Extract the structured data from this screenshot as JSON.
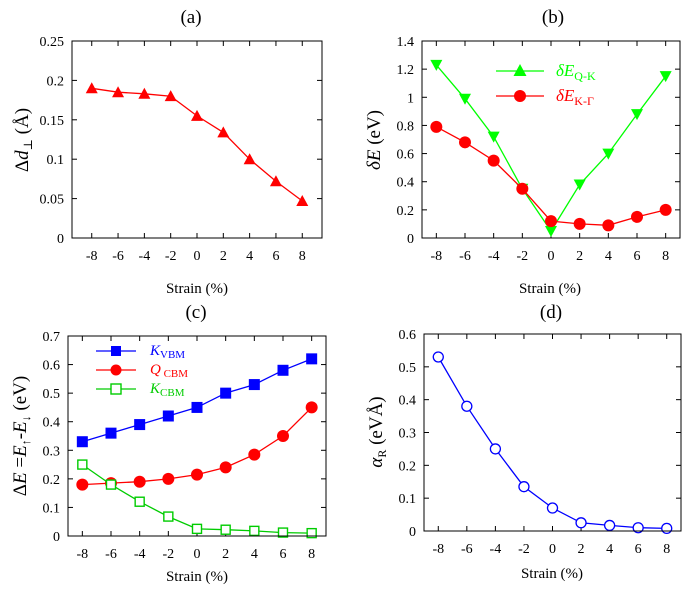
{
  "chart_data": [
    {
      "panel": "(a)",
      "type": "line",
      "title": "(a)",
      "xlabel": "Strain (%)",
      "ylabel": "Δd⊥ (Å)",
      "ylabel_parts": [
        "Δ",
        "d",
        "⊥",
        " (Å)"
      ],
      "x": [
        -8,
        -6,
        -4,
        -2,
        0,
        2,
        4,
        6,
        8
      ],
      "xlim": [
        -9.5,
        9.5
      ],
      "ylim": [
        0,
        0.25
      ],
      "xticks": [
        "-8",
        "-6",
        "-4",
        "-2",
        "0",
        "2",
        "4",
        "6",
        "8"
      ],
      "yticks": [
        "0",
        "0.05",
        "0.1",
        "0.15",
        "0.2",
        "0.25"
      ],
      "series": [
        {
          "name": "Δd⊥",
          "color": "#ff0000",
          "marker": "triangle-up",
          "filled": true,
          "values": [
            0.19,
            0.185,
            0.183,
            0.18,
            0.155,
            0.134,
            0.1,
            0.072,
            0.047
          ]
        }
      ]
    },
    {
      "panel": "(b)",
      "type": "line",
      "title": "(b)",
      "xlabel": "Strain (%)",
      "ylabel": "δE (eV)",
      "ylabel_parts": [
        "δ",
        "E",
        " (eV)"
      ],
      "x": [
        -8,
        -6,
        -4,
        -2,
        0,
        2,
        4,
        6,
        8
      ],
      "xlim": [
        -9,
        9
      ],
      "ylim": [
        0,
        1.4
      ],
      "xticks": [
        "-8",
        "-6",
        "-4",
        "-2",
        "0",
        "2",
        "4",
        "6",
        "8"
      ],
      "yticks": [
        "0",
        "0.2",
        "0.4",
        "0.6",
        "0.8",
        "1",
        "1.2",
        "1.4"
      ],
      "legend_position": "top-right",
      "series": [
        {
          "name": "δEQ-K",
          "name_main": "δE",
          "name_sub": "Q-K",
          "color": "#00ff00",
          "marker": "triangle-down",
          "legend_marker": "triangle-up",
          "filled": true,
          "values": [
            1.23,
            0.99,
            0.72,
            0.35,
            0.05,
            0.38,
            0.6,
            0.88,
            1.15
          ]
        },
        {
          "name": "δEK-Γ",
          "name_main": "δE",
          "name_sub": "K-Γ",
          "color": "#ff0000",
          "marker": "circle",
          "filled": true,
          "values": [
            0.79,
            0.68,
            0.55,
            0.35,
            0.12,
            0.1,
            0.09,
            0.15,
            0.2
          ]
        }
      ]
    },
    {
      "panel": "(c)",
      "type": "line",
      "title": "(c)",
      "xlabel": "Strain (%)",
      "ylabel": "ΔE =E↑-E↓ (eV)",
      "ylabel_parts": [
        "Δ",
        "E",
        " =",
        "E",
        "↑",
        "-",
        "E",
        "↓",
        " (eV)"
      ],
      "x": [
        -8,
        -6,
        -4,
        -2,
        0,
        2,
        4,
        6,
        8
      ],
      "xlim": [
        -9,
        9
      ],
      "ylim": [
        0,
        0.7
      ],
      "xticks": [
        "-8",
        "-6",
        "-4",
        "-2",
        "0",
        "2",
        "4",
        "6",
        "8"
      ],
      "yticks": [
        "0",
        "0.1",
        "0.2",
        "0.3",
        "0.4",
        "0.5",
        "0.6",
        "0.7"
      ],
      "legend_position": "top-left",
      "series": [
        {
          "name": "KVBM",
          "name_main": "K",
          "name_sub": "VBM",
          "color": "#0000ff",
          "marker": "square",
          "filled": true,
          "values": [
            0.33,
            0.36,
            0.39,
            0.42,
            0.45,
            0.5,
            0.53,
            0.58,
            0.62
          ]
        },
        {
          "name": "Q CBM",
          "name_main": "Q",
          "name_sub": " CBM",
          "color": "#ff0000",
          "marker": "circle",
          "filled": true,
          "values": [
            0.18,
            0.185,
            0.19,
            0.2,
            0.215,
            0.24,
            0.285,
            0.35,
            0.45
          ]
        },
        {
          "name": "KCBM",
          "name_main": "K",
          "name_sub": "CBM",
          "color": "#00cc00",
          "marker": "square",
          "filled": false,
          "values": [
            0.25,
            0.18,
            0.12,
            0.068,
            0.025,
            0.022,
            0.018,
            0.012,
            0.01
          ]
        }
      ]
    },
    {
      "panel": "(d)",
      "type": "line",
      "title": "(d)",
      "xlabel": "Strain (%)",
      "ylabel": "αR (eVÅ)",
      "ylabel_parts": [
        "α",
        "R",
        " (eVÅ)"
      ],
      "x": [
        -8,
        -6,
        -4,
        -2,
        0,
        2,
        4,
        6,
        8
      ],
      "xlim": [
        -9,
        9
      ],
      "ylim": [
        0,
        0.6
      ],
      "xticks": [
        "-8",
        "-6",
        "-4",
        "-2",
        "0",
        "2",
        "4",
        "6",
        "8"
      ],
      "yticks": [
        "0",
        "0.1",
        "0.2",
        "0.3",
        "0.4",
        "0.5",
        "0.6"
      ],
      "series": [
        {
          "name": "αR",
          "color": "#0000ff",
          "marker": "circle",
          "filled": false,
          "values": [
            0.53,
            0.38,
            0.25,
            0.135,
            0.07,
            0.025,
            0.017,
            0.01,
            0.008
          ]
        }
      ]
    }
  ]
}
